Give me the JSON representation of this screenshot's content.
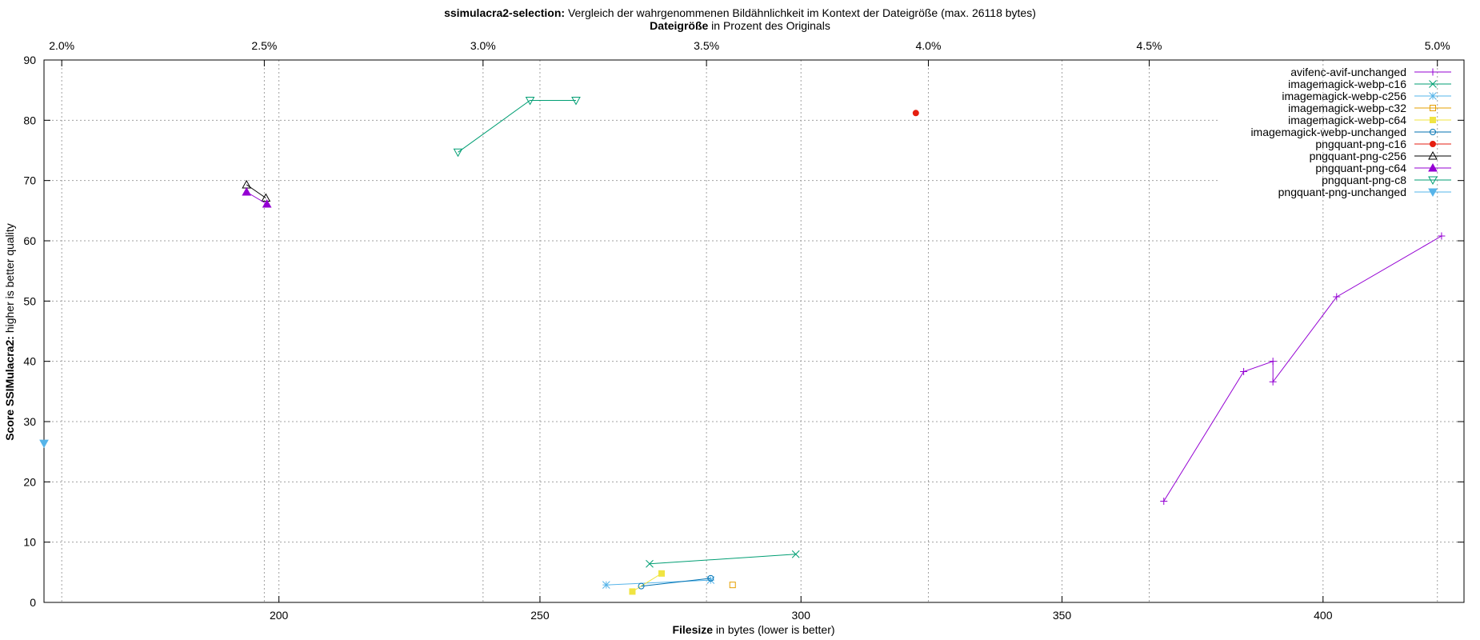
{
  "chart_data": {
    "type": "scatter",
    "title": {
      "bold": "ssimulacra2-selection:",
      "rest": " Vergleich der wahrgenommenen Bildähnlichkeit im Kontext der Dateigröße (max. 26118 bytes)"
    },
    "top_axis_title": {
      "bold": "Dateigröße",
      "rest": " in Prozent des Originals"
    },
    "xlabel": {
      "bold": "Filesize",
      "rest": " in bytes (lower is better)"
    },
    "ylabel": {
      "bold": "Score SSIMulacra2:",
      "rest": " higher is better quality"
    },
    "xlim": [
      155,
      427
    ],
    "ylim": [
      0,
      90
    ],
    "x_ticks": [
      200,
      250,
      300,
      350,
      400
    ],
    "y_ticks": [
      0,
      10,
      20,
      30,
      40,
      50,
      60,
      70,
      80,
      90
    ],
    "top_ticks": [
      "2.0%",
      "2.5%",
      "3.0%",
      "3.5%",
      "4.0%",
      "4.5%",
      "5.0%"
    ],
    "top_tick_bytes": [
      158.4,
      197.2,
      239.1,
      281.9,
      324.4,
      366.7,
      421.9
    ],
    "grid": true,
    "legend_position": "top-right",
    "series": [
      {
        "name": "avifenc-avif-unchanged",
        "color": "#9400d3",
        "marker": "plus",
        "points": [
          [
            369.5,
            16.8
          ],
          [
            384.8,
            38.3
          ],
          [
            390.4,
            40.0
          ],
          [
            390.4,
            36.6
          ],
          [
            402.6,
            50.7
          ],
          [
            422.7,
            60.8
          ]
        ]
      },
      {
        "name": "imagemagick-webp-c16",
        "color": "#009e73",
        "marker": "cross",
        "points": [
          [
            271.0,
            6.4
          ],
          [
            299.0,
            8.0
          ]
        ]
      },
      {
        "name": "imagemagick-webp-c256",
        "color": "#56b4e9",
        "marker": "star",
        "points": [
          [
            262.7,
            2.9
          ],
          [
            282.7,
            3.7
          ]
        ]
      },
      {
        "name": "imagemagick-webp-c32",
        "color": "#e69f00",
        "marker": "open-square",
        "points": [
          [
            286.9,
            2.9
          ]
        ]
      },
      {
        "name": "imagemagick-webp-c64",
        "color": "#f0e442",
        "marker": "filled-square",
        "points": [
          [
            267.7,
            1.8
          ],
          [
            273.3,
            4.8
          ]
        ]
      },
      {
        "name": "imagemagick-webp-unchanged",
        "color": "#0072b2",
        "marker": "open-circle",
        "points": [
          [
            269.4,
            2.7
          ],
          [
            282.7,
            4.0
          ]
        ]
      },
      {
        "name": "pngquant-png-c16",
        "color": "#e51e10",
        "marker": "filled-circle",
        "points": [
          [
            322.0,
            81.2
          ]
        ]
      },
      {
        "name": "pngquant-png-c256",
        "color": "#000000",
        "marker": "open-triangle",
        "points": [
          [
            193.8,
            69.3
          ],
          [
            197.5,
            67.1
          ]
        ]
      },
      {
        "name": "pngquant-png-c64",
        "color": "#9400d3",
        "marker": "filled-triangle",
        "points": [
          [
            193.8,
            68.1
          ],
          [
            197.7,
            66.1
          ]
        ]
      },
      {
        "name": "pngquant-png-c8",
        "color": "#009e73",
        "marker": "open-inverted-triangle",
        "points": [
          [
            234.3,
            74.7
          ],
          [
            248.1,
            83.3
          ],
          [
            256.9,
            83.3
          ]
        ]
      },
      {
        "name": "pngquant-png-unchanged",
        "color": "#56b4e9",
        "marker": "filled-inverted-triangle",
        "points": [
          [
            155.0,
            26.4
          ]
        ]
      }
    ]
  }
}
